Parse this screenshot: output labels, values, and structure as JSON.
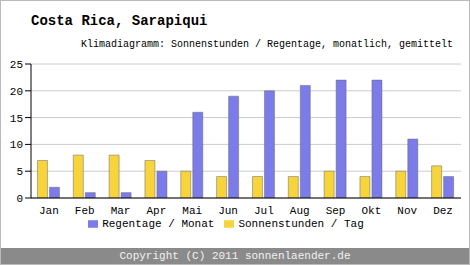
{
  "chart_data": {
    "type": "bar",
    "title": "Costa Rica, Sarapiqui",
    "subtitle": "Klimadiagramm: Sonnenstunden / Regentage, monatlich, gemittelt",
    "annotation": "Copyright (C) 2011 sonnenlaender.de",
    "categories": [
      "Jan",
      "Feb",
      "Mar",
      "Apr",
      "Mai",
      "Jun",
      "Jul",
      "Aug",
      "Sep",
      "Okt",
      "Nov",
      "Dez"
    ],
    "series": [
      {
        "name": "Sonnenstunden / Tag",
        "color": "#f8d43c",
        "values": [
          7,
          8,
          8,
          7,
          5,
          4,
          4,
          4,
          5,
          4,
          5,
          6
        ]
      },
      {
        "name": "Regentage / Monat",
        "color": "#7b7bea",
        "values": [
          2,
          1,
          1,
          5,
          16,
          19,
          20,
          21,
          22,
          22,
          11,
          4
        ]
      }
    ],
    "ylim": [
      0,
      25
    ],
    "yticks": [
      0,
      5,
      10,
      15,
      20,
      25
    ],
    "grid": true,
    "legend": "bottom"
  }
}
